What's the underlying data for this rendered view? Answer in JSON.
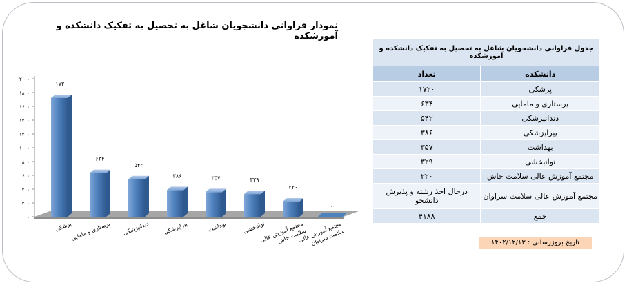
{
  "card": {
    "title": "نمودار فراوانی دانشجویان شاغل به تحصیل به تفکیک دانشکده و آموزشکده"
  },
  "chart_data": {
    "type": "bar",
    "categories": [
      "پزشکی",
      "پرستاری و مامایی",
      "دندانپزشکی",
      "پیراپزشکی",
      "بهداشت",
      "توانبخشی",
      "مجتمع آموزش عالی سلامت خاش",
      "مجتمع آموزش عالی سلامت سراوان"
    ],
    "values": [
      1720,
      634,
      542,
      386,
      357,
      329,
      220,
      0
    ],
    "value_labels": [
      "۱۷۲۰",
      "۶۳۴",
      "۵۴۲",
      "۳۸۶",
      "۳۵۷",
      "۳۲۹",
      "۲۲۰",
      "۰"
    ],
    "ylim": [
      0,
      2000
    ],
    "yticks": [
      0,
      200,
      400,
      600,
      800,
      1000,
      1200,
      1400,
      1600,
      1800,
      2000
    ],
    "ytick_labels": [
      "۰",
      "۲۰۰",
      "۴۰۰",
      "۶۰۰",
      "۸۰۰",
      "۱۰۰۰",
      "۱۲۰۰",
      "۱۴۰۰",
      "۱۶۰۰",
      "۱۸۰۰",
      "۲۰۰۰"
    ],
    "bar_color": "#4f81bd",
    "grid": false,
    "three_d": true
  },
  "table": {
    "title": "جدول فراوانی دانشجویان شاغل به تحصیل به تفکیک دانشکده و آموزشکده",
    "headers": [
      "دانشکده",
      "تعداد"
    ],
    "rows": [
      [
        "پزشکی",
        "۱۷۲۰"
      ],
      [
        "پرستاری و مامایی",
        "۶۳۴"
      ],
      [
        "دندانپزشکی",
        "۵۴۲"
      ],
      [
        "پیراپزشکی",
        "۳۸۶"
      ],
      [
        "بهداشت",
        "۳۵۷"
      ],
      [
        "توانبخشی",
        "۳۲۹"
      ],
      [
        "مجتمع آموزش عالی سلامت خاش",
        "۲۲۰"
      ],
      [
        "مجتمع آموزش عالی سلامت سراوان",
        "درحال اخذ رشته و پذیرش دانشجو"
      ],
      [
        "جمع",
        "۴۱۸۸"
      ]
    ]
  },
  "footer": {
    "report_date": "تاریخ بروزرسانی : ۱۴۰۲/۱۲/۱۳"
  },
  "colors": {
    "header_bg": "#b8cce4",
    "row_bg": "#dbe5f1",
    "date_bg": "#fbd5b5",
    "bar": "#4f81bd"
  }
}
